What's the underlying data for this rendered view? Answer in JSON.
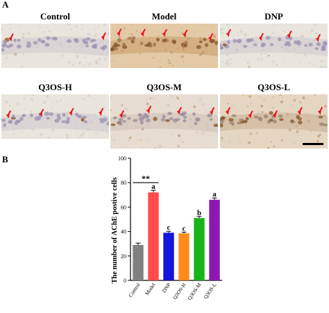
{
  "figure": {
    "panel_a_letter": "A",
    "panel_b_letter": "B"
  },
  "panel_a": {
    "images": [
      {
        "label": "Control",
        "stain": "light",
        "arrows": 2
      },
      {
        "label": "Model",
        "stain": "heavy",
        "arrows": 5
      },
      {
        "label": "DNP",
        "stain": "light",
        "arrows": 4
      },
      {
        "label": "Q3OS-H",
        "stain": "light",
        "arrows": 4
      },
      {
        "label": "Q3OS-M",
        "stain": "medium",
        "arrows": 4
      },
      {
        "label": "Q3OS-L",
        "stain": "medium-heavy",
        "arrows": 5
      }
    ],
    "arrow_color": "#e8141b",
    "scale_bar": true
  },
  "chart_data": {
    "type": "bar",
    "categories": [
      "Control",
      "Model",
      "DNP",
      "Q3OS-H",
      "Q3OS-M",
      "Q3OS-L"
    ],
    "values": [
      29,
      72,
      39,
      38.5,
      51,
      66
    ],
    "errors": [
      1.5,
      1.8,
      1.2,
      1.0,
      1.4,
      1.5
    ],
    "colors": [
      "#808080",
      "#ff4b4b",
      "#1414dc",
      "#ff8c1a",
      "#19b419",
      "#8c19b4"
    ],
    "annotations": [
      "",
      "a",
      "c",
      "c",
      "b",
      "a"
    ],
    "significance": {
      "from": "Control",
      "to": "Model",
      "label": "**"
    },
    "title": "",
    "xlabel": "",
    "ylabel": "The number of AChE postive cells",
    "ylim": [
      0,
      100
    ],
    "yticks": [
      0,
      20,
      40,
      60,
      80,
      100
    ]
  }
}
